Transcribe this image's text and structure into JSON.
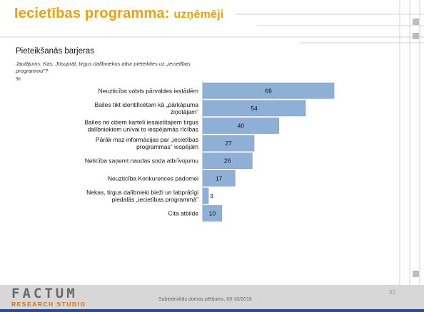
{
  "header": {
    "title_main": "Iecietības programma:",
    "title_sub": "uzņēmēji"
  },
  "section": {
    "heading": "Pieteikšanās barjeras",
    "question": "Jautājums: Kas, Jūsuprāt, tirgus dalībniekus attur pieteikties uz „iecietības programmu”?",
    "unit": "%"
  },
  "colors": {
    "title": "#f0a000",
    "bar": "#8fb0d6",
    "bar_stroke": "#7d9cc4",
    "footer": "#d7d7d7",
    "logo_accent": "#e06a00"
  },
  "chart_data": {
    "type": "bar",
    "orientation": "horizontal",
    "categories": [
      [
        "Neuzticība valsts pārvaldes iestādēm"
      ],
      [
        "Bailes tikt identificētam kā „pārkāpuma",
        "ziņotājam”"
      ],
      [
        "Bailes no citiem kartelī iesaistītajiem tirgus",
        "dalībniekiem un/vai to iespējamās rīcības"
      ],
      [
        "Pārāk maz informācijas par „iecietības",
        "programmas” iespējām"
      ],
      [
        "Neticība saņemt naudas soda atbrīvojumu"
      ],
      [
        "Neuzticība Konkurences padomei"
      ],
      [
        "Nekas, tirgus dalībnieki bieži un labprātīgi",
        "piedalās „iecietības programmā”"
      ],
      [
        "Cita atbilde"
      ]
    ],
    "values": [
      69,
      54,
      40,
      27,
      26,
      17,
      3,
      10
    ],
    "xlim": [
      0,
      69
    ],
    "grid": false,
    "legend": "none"
  },
  "footer": {
    "logo_top": "FACTUM",
    "logo_bottom": "RESEARCH STUDIO",
    "source": "Sabiedriskās domas pētījums, 09-10/2016",
    "page": "32"
  }
}
